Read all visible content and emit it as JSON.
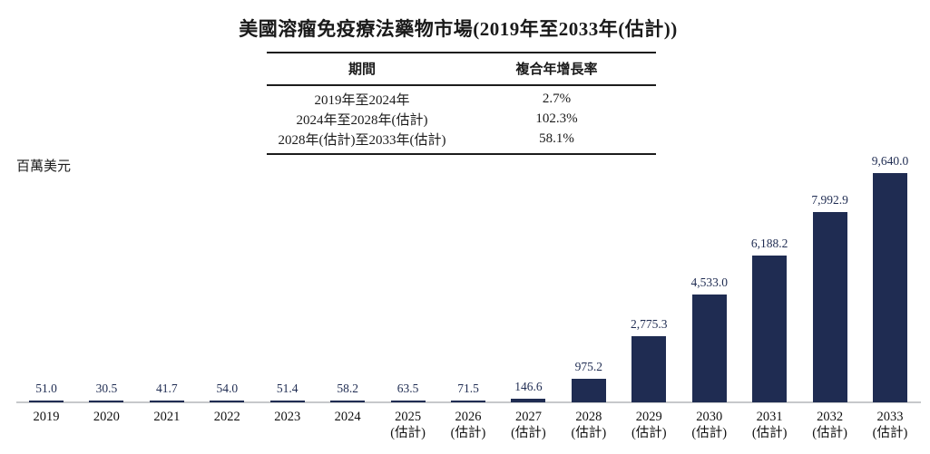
{
  "title": "美國溶瘤免疫療法藥物市場(2019年至2033年(估計))",
  "cagr_table": {
    "headers": {
      "period": "期間",
      "cagr": "複合年增長率"
    },
    "rows": [
      {
        "period": "2019年至2024年",
        "cagr": "2.7%"
      },
      {
        "period": "2024年至2028年(估計)",
        "cagr": "102.3%"
      },
      {
        "period": "2028年(估計)至2033年(估計)",
        "cagr": "58.1%"
      }
    ]
  },
  "chart_data": {
    "type": "bar",
    "title": "美國溶瘤免疫療法藥物市場(2019年至2033年(估計))",
    "xlabel": "",
    "ylabel": "百萬美元",
    "ylim": [
      0,
      9640
    ],
    "grid": false,
    "legend": "none",
    "bar_color": "#1f2c52",
    "axis_line_color": "#c6c8cb",
    "categories": [
      {
        "year": "2019",
        "note": ""
      },
      {
        "year": "2020",
        "note": ""
      },
      {
        "year": "2021",
        "note": ""
      },
      {
        "year": "2022",
        "note": ""
      },
      {
        "year": "2023",
        "note": ""
      },
      {
        "year": "2024",
        "note": ""
      },
      {
        "year": "2025",
        "note": "(估計)"
      },
      {
        "year": "2026",
        "note": "(估計)"
      },
      {
        "year": "2027",
        "note": "(估計)"
      },
      {
        "year": "2028",
        "note": "(估計)"
      },
      {
        "year": "2029",
        "note": "(估計)"
      },
      {
        "year": "2030",
        "note": "(估計)"
      },
      {
        "year": "2031",
        "note": "(估計)"
      },
      {
        "year": "2032",
        "note": "(估計)"
      },
      {
        "year": "2033",
        "note": "(估計)"
      }
    ],
    "values": [
      51.0,
      30.5,
      41.7,
      54.0,
      51.4,
      58.2,
      63.5,
      71.5,
      146.6,
      975.2,
      2775.3,
      4533.0,
      6188.2,
      7992.9,
      9640.0
    ],
    "value_labels": [
      "51.0",
      "30.5",
      "41.7",
      "54.0",
      "51.4",
      "58.2",
      "63.5",
      "71.5",
      "146.6",
      "975.2",
      "2,775.3",
      "4,533.0",
      "6,188.2",
      "7,992.9",
      "9,640.0"
    ]
  }
}
